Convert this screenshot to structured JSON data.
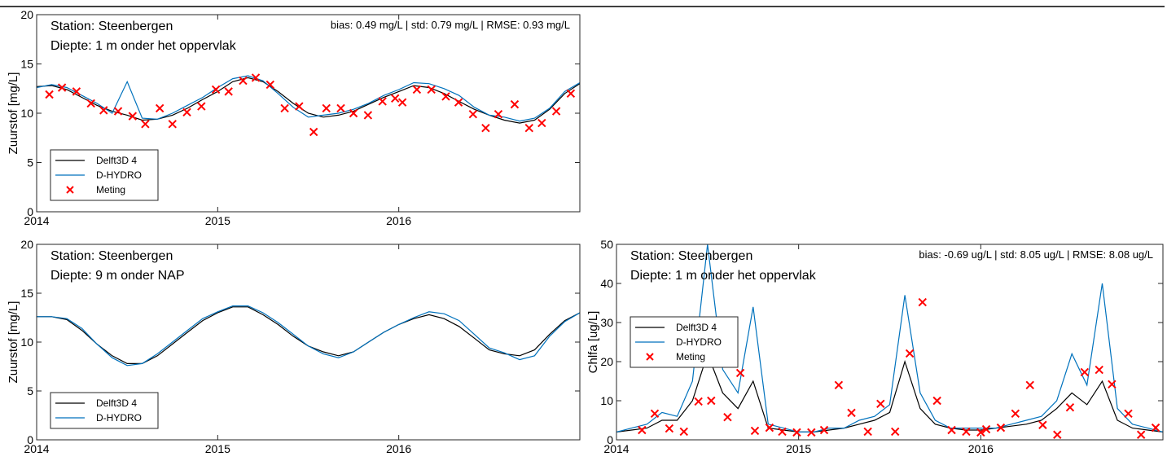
{
  "chart_data": [
    {
      "type": "line",
      "station": "Station: Steenbergen",
      "depth": "Diepte: 1 m onder het oppervlak",
      "stats": "bias: 0.49 mg/L | std: 0.79 mg/L | RMSE: 0.93 mg/L",
      "ylabel": "Zuurstof [mg/L]",
      "x": [
        2014,
        2014.083,
        2014.167,
        2014.25,
        2014.333,
        2014.417,
        2014.5,
        2014.583,
        2014.667,
        2014.75,
        2014.833,
        2014.917,
        2015,
        2015.083,
        2015.167,
        2015.25,
        2015.333,
        2015.417,
        2015.5,
        2015.583,
        2015.667,
        2015.75,
        2015.833,
        2015.917,
        2016,
        2016.083,
        2016.167,
        2016.25,
        2016.333,
        2016.417,
        2016.5,
        2016.583,
        2016.667,
        2016.75,
        2016.833,
        2016.917,
        2017
      ],
      "xlim": [
        2014,
        2017
      ],
      "xticks": [
        2014,
        2015,
        2016
      ],
      "ylim": [
        0,
        20
      ],
      "yticks": [
        0,
        5,
        10,
        15,
        20
      ],
      "legend": "lower left",
      "series": [
        {
          "name": "Delft3D 4",
          "color": "#000000",
          "mode": "line",
          "values": [
            12.7,
            12.8,
            12.4,
            11.6,
            10.8,
            10.2,
            9.8,
            9.3,
            9.4,
            9.8,
            10.5,
            11.4,
            12.2,
            13.2,
            13.6,
            13.2,
            12.2,
            11.0,
            10.0,
            9.6,
            9.8,
            10.2,
            10.9,
            11.6,
            12.2,
            12.8,
            12.6,
            12.0,
            11.2,
            10.4,
            9.8,
            9.3,
            9.0,
            9.3,
            10.4,
            12.0,
            13.0
          ]
        },
        {
          "name": "D-HYDRO",
          "color": "#0072bd",
          "mode": "line",
          "values": [
            12.6,
            12.9,
            12.6,
            11.8,
            11.0,
            10.0,
            13.2,
            9.5,
            9.4,
            10.0,
            10.8,
            11.6,
            12.6,
            13.5,
            13.8,
            13.3,
            12.0,
            10.6,
            9.6,
            9.8,
            10.0,
            10.4,
            11.0,
            11.8,
            12.4,
            13.1,
            13.0,
            12.5,
            11.8,
            10.6,
            9.8,
            9.6,
            9.2,
            9.5,
            10.5,
            12.2,
            13.1
          ]
        },
        {
          "name": "Meting",
          "color": "#ff0000",
          "mode": "markers",
          "x": [
            2014.07,
            2014.14,
            2014.22,
            2014.3,
            2014.37,
            2014.45,
            2014.53,
            2014.6,
            2014.68,
            2014.75,
            2014.83,
            2014.91,
            2014.99,
            2015.06,
            2015.14,
            2015.21,
            2015.29,
            2015.37,
            2015.45,
            2015.53,
            2015.6,
            2015.68,
            2015.75,
            2015.83,
            2015.91,
            2015.98,
            2016.02,
            2016.1,
            2016.18,
            2016.26,
            2016.33,
            2016.41,
            2016.48,
            2016.55,
            2016.64,
            2016.72,
            2016.79,
            2016.87,
            2016.95
          ],
          "values": [
            11.9,
            12.6,
            12.2,
            11.0,
            10.3,
            10.2,
            9.7,
            8.9,
            10.5,
            8.9,
            10.1,
            10.7,
            12.4,
            12.2,
            13.3,
            13.6,
            12.9,
            10.5,
            10.7,
            8.1,
            10.5,
            10.5,
            10.0,
            9.8,
            11.2,
            11.5,
            11.1,
            12.4,
            12.4,
            11.7,
            11.1,
            9.9,
            8.5,
            9.9,
            10.9,
            8.5,
            9.0,
            10.2,
            12.0
          ]
        }
      ]
    },
    {
      "type": "line",
      "station": "Station: Steenbergen",
      "depth": "Diepte: 9 m onder NAP",
      "ylabel": "Zuurstof [mg/L]",
      "x": [
        2014,
        2014.083,
        2014.167,
        2014.25,
        2014.333,
        2014.417,
        2014.5,
        2014.583,
        2014.667,
        2014.75,
        2014.833,
        2014.917,
        2015,
        2015.083,
        2015.167,
        2015.25,
        2015.333,
        2015.417,
        2015.5,
        2015.583,
        2015.667,
        2015.75,
        2015.833,
        2015.917,
        2016,
        2016.083,
        2016.167,
        2016.25,
        2016.333,
        2016.417,
        2016.5,
        2016.583,
        2016.667,
        2016.75,
        2016.833,
        2016.917,
        2017
      ],
      "xlim": [
        2014,
        2017
      ],
      "xticks": [
        2014,
        2015,
        2016
      ],
      "ylim": [
        0,
        20
      ],
      "yticks": [
        0,
        5,
        10,
        15,
        20
      ],
      "legend": "lower left",
      "series": [
        {
          "name": "Delft3D 4",
          "color": "#000000",
          "mode": "line",
          "values": [
            12.6,
            12.6,
            12.3,
            11.2,
            9.8,
            8.6,
            7.8,
            7.8,
            8.6,
            9.8,
            11.0,
            12.2,
            13.0,
            13.6,
            13.6,
            12.8,
            11.8,
            10.6,
            9.6,
            9.0,
            8.6,
            9.0,
            10.0,
            11.0,
            11.8,
            12.4,
            12.8,
            12.4,
            11.6,
            10.4,
            9.2,
            8.8,
            8.6,
            9.2,
            10.8,
            12.2,
            13.0
          ]
        },
        {
          "name": "D-HYDRO",
          "color": "#0072bd",
          "mode": "line",
          "values": [
            12.6,
            12.6,
            12.4,
            11.4,
            9.8,
            8.4,
            7.6,
            7.8,
            8.8,
            10.0,
            11.2,
            12.4,
            13.1,
            13.7,
            13.7,
            13.0,
            12.0,
            10.8,
            9.6,
            8.8,
            8.4,
            9.0,
            10.0,
            11.0,
            11.8,
            12.5,
            13.1,
            12.9,
            12.2,
            10.8,
            9.4,
            8.9,
            8.2,
            8.6,
            10.6,
            12.1,
            13.0
          ]
        }
      ]
    },
    {
      "type": "line",
      "station": "Station: Steenbergen",
      "depth": "Diepte: 1 m onder het oppervlak",
      "stats": "bias: -0.69 ug/L | std: 8.05 ug/L | RMSE: 8.08 ug/L",
      "ylabel": "Chlfa [ug/L]",
      "x": [
        2014,
        2014.083,
        2014.167,
        2014.25,
        2014.333,
        2014.417,
        2014.5,
        2014.583,
        2014.667,
        2014.75,
        2014.833,
        2014.917,
        2015,
        2015.083,
        2015.167,
        2015.25,
        2015.333,
        2015.417,
        2015.5,
        2015.583,
        2015.667,
        2015.75,
        2015.833,
        2015.917,
        2016,
        2016.083,
        2016.167,
        2016.25,
        2016.333,
        2016.417,
        2016.5,
        2016.583,
        2016.667,
        2016.75,
        2016.833,
        2016.917,
        2017
      ],
      "xlim": [
        2014,
        2017
      ],
      "xticks": [
        2014,
        2015,
        2016
      ],
      "ylim": [
        0,
        50
      ],
      "yticks": [
        0,
        10,
        20,
        30,
        40,
        50
      ],
      "legend": "center left",
      "series": [
        {
          "name": "Delft3D 4",
          "color": "#000000",
          "mode": "line",
          "values": [
            2,
            2.5,
            3,
            5,
            5,
            10,
            22,
            12,
            8,
            15,
            3,
            2.5,
            2,
            2,
            2.5,
            3,
            4,
            5,
            7,
            20,
            8,
            4,
            3,
            2.5,
            2.5,
            3,
            3.5,
            4,
            5,
            8,
            12,
            9,
            15,
            5,
            3,
            2.5,
            2
          ]
        },
        {
          "name": "D-HYDRO",
          "color": "#0072bd",
          "mode": "line",
          "values": [
            2,
            3,
            4,
            7,
            6,
            15,
            50,
            18,
            12,
            34,
            4,
            3,
            2,
            2,
            3,
            3,
            5,
            6,
            9,
            37,
            12,
            5,
            3,
            3,
            3,
            3,
            4,
            5,
            6,
            10,
            22,
            14,
            40,
            8,
            4,
            3,
            2
          ]
        },
        {
          "name": "Meting",
          "color": "#ff0000",
          "mode": "markers",
          "x": [
            2014.14,
            2014.21,
            2014.29,
            2014.37,
            2014.45,
            2014.52,
            2014.61,
            2014.68,
            2014.76,
            2014.84,
            2014.91,
            2014.99,
            2015.07,
            2015.14,
            2015.22,
            2015.29,
            2015.38,
            2015.45,
            2015.53,
            2015.61,
            2015.68,
            2015.76,
            2015.84,
            2015.92,
            2016,
            2016.03,
            2016.11,
            2016.19,
            2016.27,
            2016.34,
            2016.42,
            2016.49,
            2016.57,
            2016.65,
            2016.72,
            2016.81,
            2016.88,
            2016.96
          ],
          "values": [
            2.5,
            6.7,
            2.9,
            2.1,
            9.8,
            10.0,
            5.8,
            17.1,
            2.3,
            3.1,
            2.1,
            1.9,
            1.9,
            2.5,
            14.0,
            6.9,
            2.1,
            9.2,
            2.1,
            22.1,
            35.2,
            10.0,
            2.5,
            2.1,
            1.9,
            2.7,
            3.1,
            6.7,
            14.0,
            3.8,
            1.3,
            8.3,
            17.3,
            17.9,
            14.2,
            6.7,
            1.3,
            3.1
          ]
        }
      ]
    }
  ]
}
